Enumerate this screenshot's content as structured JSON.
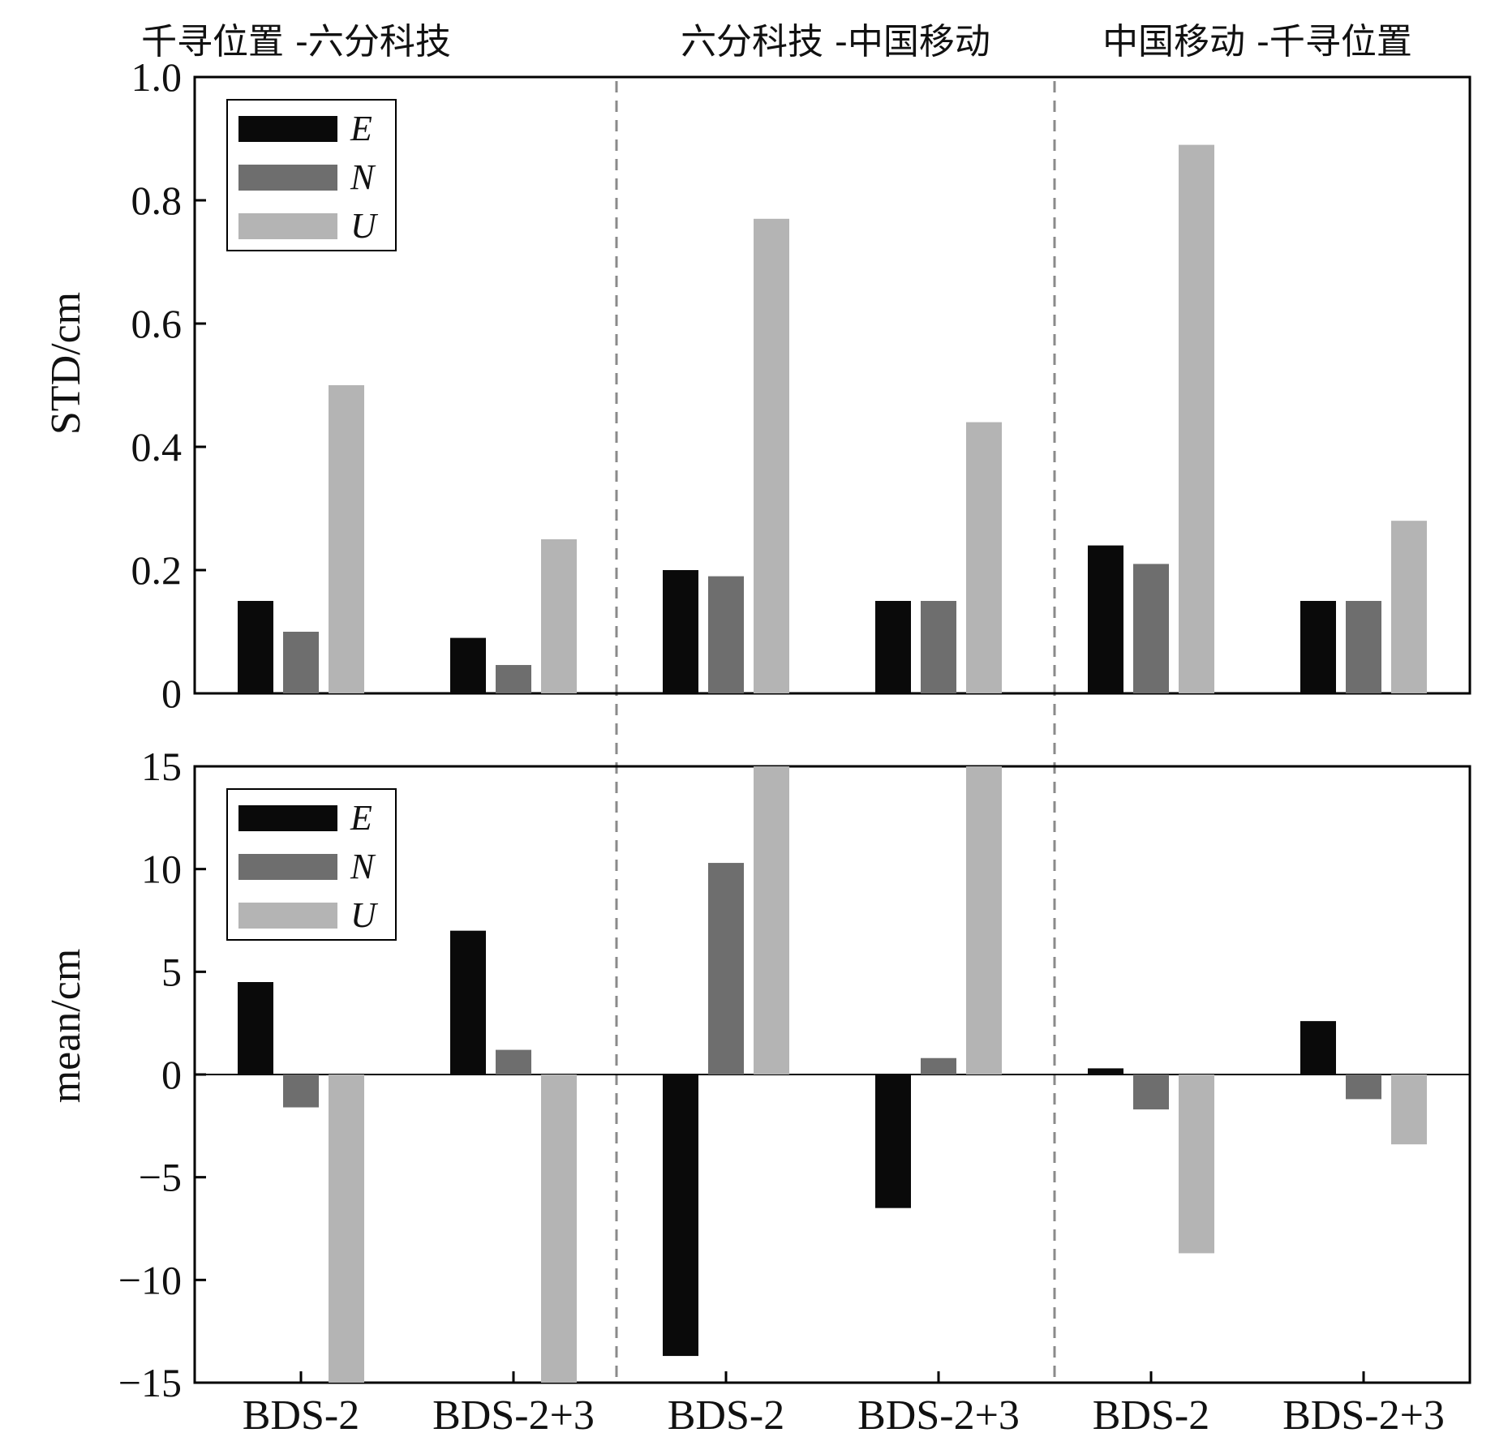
{
  "group_titles": [
    "千寻位置 -六分科技",
    "六分科技 -中国移动",
    "中国移动 -千寻位置"
  ],
  "categories": [
    "BDS-2",
    "BDS-2+3",
    "BDS-2",
    "BDS-2+3",
    "BDS-2",
    "BDS-2+3"
  ],
  "series_colors": {
    "E": "#0a0a0a",
    "N": "#6e6e6e",
    "U": "#b4b4b4"
  },
  "chart_data": [
    {
      "type": "bar",
      "ylabel": "STD/cm",
      "ylim": [
        0,
        1.0
      ],
      "yticks": [
        "0",
        "0.2",
        "0.4",
        "0.6",
        "0.8",
        "1.0"
      ],
      "ytick_values": [
        0,
        0.2,
        0.4,
        0.6,
        0.8,
        1.0
      ],
      "legend": {
        "position": "top-left",
        "entries": [
          "E",
          "N",
          "U"
        ]
      },
      "categories": [
        "BDS-2",
        "BDS-2+3",
        "BDS-2",
        "BDS-2+3",
        "BDS-2",
        "BDS-2+3"
      ],
      "series": [
        {
          "name": "E",
          "values": [
            0.15,
            0.09,
            0.2,
            0.15,
            0.24,
            0.15
          ]
        },
        {
          "name": "N",
          "values": [
            0.1,
            0.046,
            0.19,
            0.15,
            0.21,
            0.15
          ]
        },
        {
          "name": "U",
          "values": [
            0.5,
            0.25,
            0.77,
            0.44,
            0.89,
            0.28
          ]
        }
      ]
    },
    {
      "type": "bar",
      "ylabel": "mean/cm",
      "ylim": [
        -15,
        15
      ],
      "yticks": [
        "−15",
        "−10",
        "−5",
        "0",
        "5",
        "10",
        "15"
      ],
      "ytick_values": [
        -15,
        -10,
        -5,
        0,
        5,
        10,
        15
      ],
      "legend": {
        "position": "top-left",
        "entries": [
          "E",
          "N",
          "U"
        ]
      },
      "categories": [
        "BDS-2",
        "BDS-2+3",
        "BDS-2",
        "BDS-2+3",
        "BDS-2",
        "BDS-2+3"
      ],
      "series": [
        {
          "name": "E",
          "values": [
            4.5,
            7.0,
            -13.7,
            -6.5,
            0.3,
            2.6
          ]
        },
        {
          "name": "N",
          "values": [
            -1.6,
            1.2,
            10.3,
            0.8,
            -1.7,
            -1.2
          ]
        },
        {
          "name": "U",
          "values": [
            -15,
            -15,
            15,
            15,
            -8.7,
            -3.4
          ]
        }
      ]
    }
  ]
}
